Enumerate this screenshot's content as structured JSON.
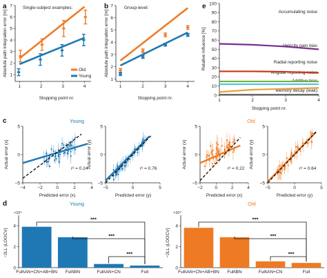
{
  "colors": {
    "old": "#ee7a24",
    "young": "#1f78b4",
    "black": "#111111"
  },
  "panel_labels": [
    "a",
    "b",
    "c",
    "d",
    "e"
  ],
  "chart_data": [
    {
      "id": "a",
      "type": "line",
      "annotation": "Single-subject examples:",
      "xlabel": "Stopping point nr.",
      "ylabel": "Absolute path integration error [m]",
      "x": [
        1,
        2,
        3,
        4
      ],
      "xlim": [
        0.8,
        4.3
      ],
      "ylim": [
        0.4,
        7
      ],
      "yticks": [
        1,
        2,
        3,
        4,
        5,
        6,
        7
      ],
      "legend": {
        "labels": [
          "Old",
          "Young"
        ],
        "placement": "right"
      },
      "series": [
        {
          "name": "Old",
          "color": "#ee7a24",
          "fit": [
            2.4,
            6.9
          ],
          "values": [
            2.6,
            3.6,
            5.0,
            6.0
          ],
          "err": [
            0.5,
            0.5,
            0.7,
            0.6
          ]
        },
        {
          "name": "Young",
          "color": "#1f78b4",
          "fit": [
            1.9,
            4.2
          ],
          "values": [
            1.2,
            2.3,
            3.1,
            4.0
          ],
          "err": [
            0.3,
            0.5,
            0.5,
            0.5
          ]
        }
      ]
    },
    {
      "id": "b",
      "type": "line",
      "annotation": "Group-level:",
      "xlabel": "Stopping point nr.",
      "ylabel": "Absolute path integration error [m]",
      "x": [
        1,
        2,
        3,
        4
      ],
      "xlim": [
        0.8,
        4.3
      ],
      "ylim": [
        0.8,
        7
      ],
      "yticks": [
        1,
        2,
        3,
        4,
        5,
        6,
        7
      ],
      "series": [
        {
          "name": "Old",
          "color": "#ee7a24",
          "fit": [
            2.5,
            6.8
          ],
          "values": [
            1.7,
            3.3,
            4.6,
            5.2
          ],
          "err": [
            0.15,
            0.15,
            0.15,
            0.15
          ]
        },
        {
          "name": "Young",
          "color": "#1f78b4",
          "fit": [
            2.1,
            4.8
          ],
          "values": [
            1.4,
            2.8,
            3.8,
            4.6
          ],
          "err": [
            0.12,
            0.12,
            0.12,
            0.12
          ]
        }
      ]
    },
    {
      "id": "e",
      "type": "line",
      "xlabel": "Stopping point nr.",
      "ylabel": "Relative influence [%]",
      "x": [
        1,
        2,
        3,
        4
      ],
      "xlim": [
        1,
        4
      ],
      "ylim": [
        0,
        100
      ],
      "yticks": [
        0,
        10,
        20,
        30,
        40,
        50,
        60,
        70,
        80,
        90,
        100
      ],
      "series": [
        {
          "name": "Accumulating noise",
          "color": "#7a2e8e",
          "values": [
            56,
            55,
            53,
            50
          ]
        },
        {
          "name": "Velocity gain bias",
          "color": "#c8361b",
          "values": [
            26,
            26,
            25.5,
            24.5
          ]
        },
        {
          "name": "Radial reporting noise",
          "color": "#6db33f",
          "values": [
            15,
            15,
            15,
            15
          ]
        },
        {
          "name": "Angular reporting noise",
          "color": "#4fc3e8",
          "values": [
            12,
            12,
            12,
            12
          ]
        },
        {
          "name": "Additive bias",
          "color": "#e9a13b",
          "values": [
            3.5,
            6,
            7,
            8
          ]
        },
        {
          "name": "Memory decay (leak)",
          "color": "#555555",
          "values": [
            0.5,
            0.5,
            0.5,
            0.5
          ]
        }
      ]
    },
    {
      "id": "c_young_x",
      "type": "scatter",
      "group": "Young",
      "title": "Young",
      "xlabel": "Predicted error (x)",
      "ylabel": "Actual error (x)",
      "xlim": [
        -4,
        4
      ],
      "ylim": [
        -5,
        5
      ],
      "xticks": [
        -4,
        -2,
        0,
        2,
        4
      ],
      "yticks": [
        -5,
        0,
        5
      ],
      "r2": "r² = 0.24",
      "color": "#1f78b4",
      "fit": [
        [
          -4,
          -1.5
        ],
        [
          3.5,
          1.9
        ]
      ],
      "identity": [
        [
          -4,
          -4.2
        ],
        [
          2.8,
          3.6
        ]
      ],
      "cloud": {
        "n": 46,
        "x_range": [
          -1.6,
          2.2
        ],
        "slope": 0.7,
        "spread": 1.4,
        "err": 1.0,
        "seed": 11
      }
    },
    {
      "id": "c_young_y",
      "type": "scatter",
      "group": "Young",
      "xlabel": "Predicted error (y)",
      "ylabel": "Actual error (y)",
      "xlim": [
        -5,
        5
      ],
      "ylim": [
        -5,
        5
      ],
      "xticks": [
        -5,
        0,
        5
      ],
      "yticks": [
        -5,
        0,
        5
      ],
      "r2": "r² = 0.76",
      "color": "#1f78b4",
      "fit": [
        [
          -5,
          -4.6
        ],
        [
          3,
          3.2
        ]
      ],
      "identity": [
        [
          -5,
          -5
        ],
        [
          3.3,
          3.3
        ]
      ],
      "cloud": {
        "n": 46,
        "x_range": [
          -3.6,
          2.8
        ],
        "slope": 1.0,
        "spread": 0.8,
        "err": 0.9,
        "seed": 23
      }
    },
    {
      "id": "c_old_x",
      "type": "scatter",
      "group": "Old",
      "title": "Old",
      "xlabel": "Predicted error (x)",
      "ylabel": "Actual error (x)",
      "xlim": [
        -2,
        4
      ],
      "ylim": [
        -5,
        5
      ],
      "xticks": [
        -2,
        0,
        2,
        4
      ],
      "yticks": [
        -5,
        0,
        5
      ],
      "r2": "r² = 0.22",
      "color": "#ee7a24",
      "fit": [
        [
          -2,
          -1.5
        ],
        [
          3,
          1.6
        ]
      ],
      "identity": [
        [
          -2,
          -4.6
        ],
        [
          3,
          3.0
        ]
      ],
      "cloud": {
        "n": 50,
        "x_range": [
          -1.4,
          2.6
        ],
        "slope": 0.8,
        "spread": 1.8,
        "err": 1.1,
        "seed": 37
      }
    },
    {
      "id": "c_old_y",
      "type": "scatter",
      "group": "Old",
      "xlabel": "Predicted error (y)",
      "ylabel": "Actual error (y)",
      "xlim": [
        -5,
        5
      ],
      "ylim": [
        -5,
        5
      ],
      "xticks": [
        -5,
        0,
        5
      ],
      "yticks": [
        -5,
        0,
        5
      ],
      "r2": "r² = 0.64",
      "color": "#ee7a24",
      "fit": [
        [
          -5,
          -4.8
        ],
        [
          4,
          4.0
        ]
      ],
      "identity": [
        [
          -5,
          -5
        ],
        [
          4,
          4
        ]
      ],
      "cloud": {
        "n": 50,
        "x_range": [
          -3.4,
          3.4
        ],
        "slope": 1.0,
        "spread": 1.1,
        "err": 1.0,
        "seed": 53
      }
    },
    {
      "id": "d_young",
      "type": "bar",
      "group": "Young",
      "title": "Young",
      "ylabel": "−2LL (LOOCV)",
      "multiplier": "×10⁴",
      "categories": [
        "Full\\AN+CN+AB+BN",
        "Full\\BN",
        "Full\\AN+CN",
        "Full"
      ],
      "values": [
        3.9,
        2.9,
        0.35,
        0.2
      ],
      "ylim": [
        0,
        5
      ],
      "yticks": [
        0,
        2,
        4
      ],
      "color": "#1f78b4",
      "significance": [
        "***",
        "***",
        "***"
      ]
    },
    {
      "id": "d_old",
      "type": "bar",
      "group": "Old",
      "title": "Old",
      "ylabel": "−2LL (LOOCV)",
      "multiplier": "×10⁴",
      "categories": [
        "Full\\AN+CN+AB+BN",
        "Full\\BN",
        "Full\\AN+CN",
        "Full"
      ],
      "values": [
        3.8,
        2.9,
        0.6,
        0.45
      ],
      "ylim": [
        0,
        5
      ],
      "yticks": [
        0,
        2,
        4
      ],
      "color": "#ee7a24",
      "significance": [
        "***",
        "***",
        "***"
      ]
    }
  ]
}
